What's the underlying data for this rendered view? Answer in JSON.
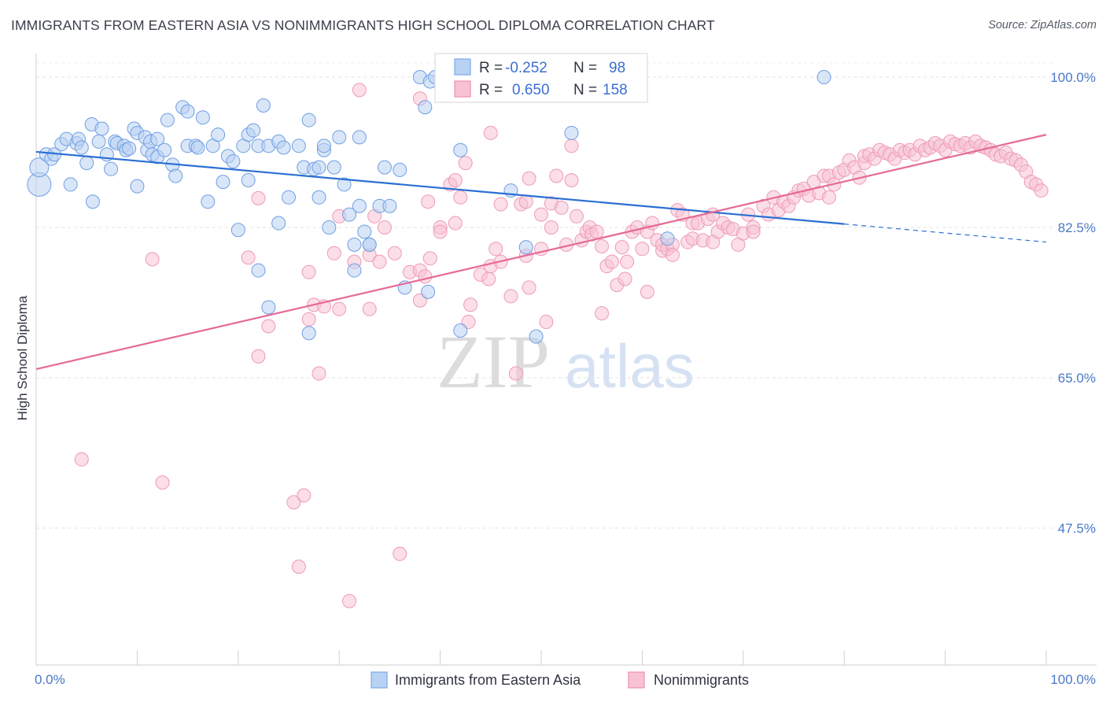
{
  "header": {
    "title": "IMMIGRANTS FROM EASTERN ASIA VS NONIMMIGRANTS HIGH SCHOOL DIPLOMA CORRELATION CHART",
    "source": "Source: ZipAtlas.com"
  },
  "watermark": {
    "zip": "ZIP",
    "atlas": "atlas"
  },
  "chart_data": {
    "type": "scatter",
    "title": "IMMIGRANTS FROM EASTERN ASIA VS NONIMMIGRANTS HIGH SCHOOL DIPLOMA CORRELATION CHART",
    "xlabel": "",
    "ylabel": "High School Diploma",
    "xlim": [
      0,
      100
    ],
    "ylim": [
      30,
      102
    ],
    "x_tick_labels": {
      "left": "0.0%",
      "right": "100.0%"
    },
    "y_ticks": [
      {
        "value": 100.0,
        "label": "100.0%"
      },
      {
        "value": 82.5,
        "label": "82.5%"
      },
      {
        "value": 65.0,
        "label": "65.0%"
      },
      {
        "value": 47.5,
        "label": "47.5%"
      }
    ],
    "grid": true,
    "legend_position": "top-center",
    "legend": [
      {
        "series": "Immigrants from Eastern Asia",
        "r_label": "R =",
        "r_value": "-0.252",
        "n_label": "N =",
        "n_value": "98",
        "color": "#7aaae8",
        "fill": "#b9d2f3"
      },
      {
        "series": "Nonimmigrants",
        "r_label": "R =",
        "r_value": "0.650",
        "n_label": "N =",
        "n_value": "158",
        "color": "#ee8fb0",
        "fill": "#f7c2d4"
      }
    ],
    "series": [
      {
        "name": "Immigrants from Eastern Asia",
        "color": "#6f9fe3",
        "line_color": "#2b6fd4",
        "trend": {
          "x": [
            0,
            80
          ],
          "y": [
            91.3,
            82.9
          ],
          "dashed_to": [
            100,
            80.8
          ]
        },
        "points": [
          [
            0.3,
            87.5
          ],
          [
            0.3,
            89.5
          ],
          [
            1,
            91
          ],
          [
            1.5,
            90.5
          ],
          [
            1.8,
            91
          ],
          [
            2.5,
            92.2
          ],
          [
            3,
            92.8
          ],
          [
            3.4,
            87.5
          ],
          [
            4,
            92.3
          ],
          [
            4.2,
            92.8
          ],
          [
            4.5,
            91.8
          ],
          [
            5,
            90
          ],
          [
            5.5,
            94.5
          ],
          [
            5.6,
            85.5
          ],
          [
            6.5,
            94
          ],
          [
            6.2,
            92.5
          ],
          [
            7,
            91
          ],
          [
            7.4,
            89.3
          ],
          [
            7.8,
            92.5
          ],
          [
            8,
            92.3
          ],
          [
            8.7,
            92
          ],
          [
            8.9,
            91.5
          ],
          [
            9.2,
            91.7
          ],
          [
            9.7,
            94
          ],
          [
            10,
            93.5
          ],
          [
            10,
            87.3
          ],
          [
            10.8,
            93
          ],
          [
            11,
            91.5
          ],
          [
            11.3,
            92.5
          ],
          [
            11.5,
            91
          ],
          [
            12,
            90.7
          ],
          [
            12,
            92.8
          ],
          [
            12.7,
            91.5
          ],
          [
            13,
            95
          ],
          [
            13.5,
            89.8
          ],
          [
            13.8,
            88.5
          ],
          [
            14.5,
            96.5
          ],
          [
            15,
            96
          ],
          [
            15,
            92
          ],
          [
            15.8,
            92
          ],
          [
            16,
            91.8
          ],
          [
            16.5,
            95.3
          ],
          [
            17,
            85.5
          ],
          [
            17.5,
            92
          ],
          [
            18,
            93.3
          ],
          [
            18.5,
            87.8
          ],
          [
            19,
            90.8
          ],
          [
            19.5,
            90.2
          ],
          [
            20,
            82.2
          ],
          [
            20.5,
            92
          ],
          [
            21,
            93.3
          ],
          [
            21,
            88
          ],
          [
            21.5,
            93.8
          ],
          [
            22,
            77.5
          ],
          [
            22,
            92
          ],
          [
            22.5,
            96.7
          ],
          [
            23,
            92
          ],
          [
            23,
            73.2
          ],
          [
            24,
            92.5
          ],
          [
            24.5,
            91.8
          ],
          [
            24,
            83
          ],
          [
            25,
            86
          ],
          [
            26,
            92
          ],
          [
            26.5,
            89.5
          ],
          [
            27,
            70.2
          ],
          [
            27,
            95
          ],
          [
            27.5,
            89.3
          ],
          [
            28,
            86
          ],
          [
            28,
            89.5
          ],
          [
            28.5,
            91.5
          ],
          [
            28.5,
            92
          ],
          [
            29,
            82.5
          ],
          [
            29.5,
            89.5
          ],
          [
            30,
            93
          ],
          [
            30.5,
            87.5
          ],
          [
            31,
            84
          ],
          [
            31.5,
            80.5
          ],
          [
            31.5,
            77.5
          ],
          [
            32,
            93
          ],
          [
            32,
            85
          ],
          [
            32.5,
            82
          ],
          [
            33,
            80.5
          ],
          [
            33,
            80.5
          ],
          [
            34,
            85
          ],
          [
            34.5,
            89.5
          ],
          [
            35,
            85
          ],
          [
            36,
            89.2
          ],
          [
            36.5,
            75.5
          ],
          [
            38,
            100
          ],
          [
            38.5,
            96.5
          ],
          [
            38.8,
            75
          ],
          [
            39,
            99.5
          ],
          [
            39.5,
            100
          ],
          [
            42,
            70.5
          ],
          [
            42,
            91.5
          ],
          [
            44,
            100
          ],
          [
            47,
            86.8
          ],
          [
            48.5,
            80.2
          ],
          [
            49.5,
            69.8
          ],
          [
            53,
            93.5
          ],
          [
            62.5,
            81.2
          ],
          [
            78,
            100
          ]
        ]
      },
      {
        "name": "Nonimmigrants",
        "color": "#ee8fb0",
        "line_color": "#e56a95",
        "trend": {
          "x": [
            0,
            100
          ],
          "y": [
            66.0,
            93.3
          ]
        },
        "points": [
          [
            4.5,
            55.5
          ],
          [
            11.5,
            78.8
          ],
          [
            12.5,
            52.8
          ],
          [
            21,
            79
          ],
          [
            22,
            85.9
          ],
          [
            22,
            67.5
          ],
          [
            23,
            71
          ],
          [
            25.5,
            50.5
          ],
          [
            26,
            43
          ],
          [
            26.5,
            51.3
          ],
          [
            27,
            77.3
          ],
          [
            27,
            71.8
          ],
          [
            27.5,
            73.5
          ],
          [
            28,
            65.5
          ],
          [
            28.5,
            73.3
          ],
          [
            29.5,
            79.5
          ],
          [
            30,
            83.8
          ],
          [
            30,
            73
          ],
          [
            31,
            39
          ],
          [
            31.5,
            78.5
          ],
          [
            32,
            98.5
          ],
          [
            33,
            73
          ],
          [
            33,
            79.3
          ],
          [
            33.5,
            83.8
          ],
          [
            34,
            78.5
          ],
          [
            34.5,
            82.5
          ],
          [
            35.5,
            79.5
          ],
          [
            36,
            44.5
          ],
          [
            37,
            77.3
          ],
          [
            38,
            74
          ],
          [
            38,
            77.5
          ],
          [
            38,
            97.5
          ],
          [
            38.5,
            76.8
          ],
          [
            38.8,
            85.5
          ],
          [
            39,
            78.9
          ],
          [
            40,
            82.5
          ],
          [
            40,
            82
          ],
          [
            41,
            87.5
          ],
          [
            41.5,
            83
          ],
          [
            41.5,
            88
          ],
          [
            42,
            86
          ],
          [
            42.5,
            90
          ],
          [
            42.8,
            71.5
          ],
          [
            43,
            73.5
          ],
          [
            44,
            77
          ],
          [
            44.8,
            76.5
          ],
          [
            45,
            93.5
          ],
          [
            45,
            78
          ],
          [
            45.5,
            80
          ],
          [
            46,
            85.2
          ],
          [
            46,
            78.5
          ],
          [
            47,
            74.5
          ],
          [
            47.5,
            65.5
          ],
          [
            48,
            85.2
          ],
          [
            48.5,
            79.2
          ],
          [
            48.5,
            85.5
          ],
          [
            48.8,
            88.2
          ],
          [
            48.8,
            75.5
          ],
          [
            50,
            80
          ],
          [
            50,
            84
          ],
          [
            50.5,
            71.5
          ],
          [
            51,
            82.5
          ],
          [
            51,
            85.3
          ],
          [
            51.5,
            88.5
          ],
          [
            52,
            84.8
          ],
          [
            52.5,
            80.5
          ],
          [
            53,
            88
          ],
          [
            53,
            92
          ],
          [
            53.5,
            83.8
          ],
          [
            54,
            81
          ],
          [
            54.5,
            82
          ],
          [
            54.8,
            82.5
          ],
          [
            55,
            81.7
          ],
          [
            55.5,
            82
          ],
          [
            56,
            80.3
          ],
          [
            56,
            72.5
          ],
          [
            56.5,
            78
          ],
          [
            57,
            78.5
          ],
          [
            57.5,
            75.8
          ],
          [
            58,
            80.2
          ],
          [
            58.3,
            76.5
          ],
          [
            58.5,
            78.5
          ],
          [
            59,
            82
          ],
          [
            59.5,
            82.5
          ],
          [
            60,
            80
          ],
          [
            60.5,
            82
          ],
          [
            60.5,
            75
          ],
          [
            61,
            83
          ],
          [
            61.5,
            81
          ],
          [
            62,
            79.8
          ],
          [
            62,
            80.5
          ],
          [
            62.5,
            80
          ],
          [
            63,
            80.5
          ],
          [
            63,
            79.3
          ],
          [
            63.5,
            84.5
          ],
          [
            64,
            84
          ],
          [
            64.5,
            80.8
          ],
          [
            65,
            83
          ],
          [
            65,
            81.2
          ],
          [
            65.5,
            83
          ],
          [
            66,
            81
          ],
          [
            66.5,
            83.5
          ],
          [
            67,
            80.8
          ],
          [
            67,
            84
          ],
          [
            67.5,
            82
          ],
          [
            68,
            83
          ],
          [
            68.5,
            82.5
          ],
          [
            69,
            82.3
          ],
          [
            69.5,
            80.5
          ],
          [
            70,
            81.8
          ],
          [
            70.5,
            84
          ],
          [
            71,
            82.5
          ],
          [
            71,
            82
          ],
          [
            72,
            85
          ],
          [
            72.5,
            84
          ],
          [
            73,
            86
          ],
          [
            73.5,
            84.5
          ],
          [
            74,
            85.5
          ],
          [
            74.5,
            85
          ],
          [
            75,
            86
          ],
          [
            75.5,
            86.8
          ],
          [
            76,
            87
          ],
          [
            76.5,
            86.2
          ],
          [
            77,
            87.8
          ],
          [
            77.5,
            86.5
          ],
          [
            78,
            88.5
          ],
          [
            78.5,
            88.5
          ],
          [
            78.5,
            86
          ],
          [
            79,
            87.5
          ],
          [
            79.5,
            88.9
          ],
          [
            80,
            89.2
          ],
          [
            80.5,
            90.3
          ],
          [
            81,
            89.5
          ],
          [
            81.5,
            88.3
          ],
          [
            82,
            90
          ],
          [
            82,
            90.8
          ],
          [
            82.5,
            91
          ],
          [
            83,
            90.5
          ],
          [
            83.5,
            91.5
          ],
          [
            84,
            91.2
          ],
          [
            84.5,
            91
          ],
          [
            85,
            90.5
          ],
          [
            85.5,
            91.5
          ],
          [
            86,
            91.2
          ],
          [
            86.5,
            91.5
          ],
          [
            87,
            91
          ],
          [
            87.5,
            92
          ],
          [
            88,
            91.5
          ],
          [
            88.5,
            91.8
          ],
          [
            89,
            92.3
          ],
          [
            89.5,
            92
          ],
          [
            90,
            91.5
          ],
          [
            90.5,
            92.5
          ],
          [
            91,
            92.2
          ],
          [
            91.5,
            92
          ],
          [
            92,
            92.3
          ],
          [
            92.5,
            91.8
          ],
          [
            93,
            92.5
          ],
          [
            93.5,
            92
          ],
          [
            94,
            91.8
          ],
          [
            94.5,
            91.5
          ],
          [
            95,
            91
          ],
          [
            95.5,
            90.8
          ],
          [
            96,
            91.2
          ],
          [
            96.5,
            90.5
          ],
          [
            97,
            90.3
          ],
          [
            97.5,
            89.8
          ],
          [
            98,
            89
          ],
          [
            98.5,
            87.8
          ],
          [
            99,
            87.5
          ],
          [
            99.5,
            86.8
          ]
        ]
      }
    ]
  },
  "legend_bottom": {
    "items": [
      {
        "label": "Immigrants from Eastern Asia"
      },
      {
        "label": "Nonimmigrants"
      }
    ]
  }
}
